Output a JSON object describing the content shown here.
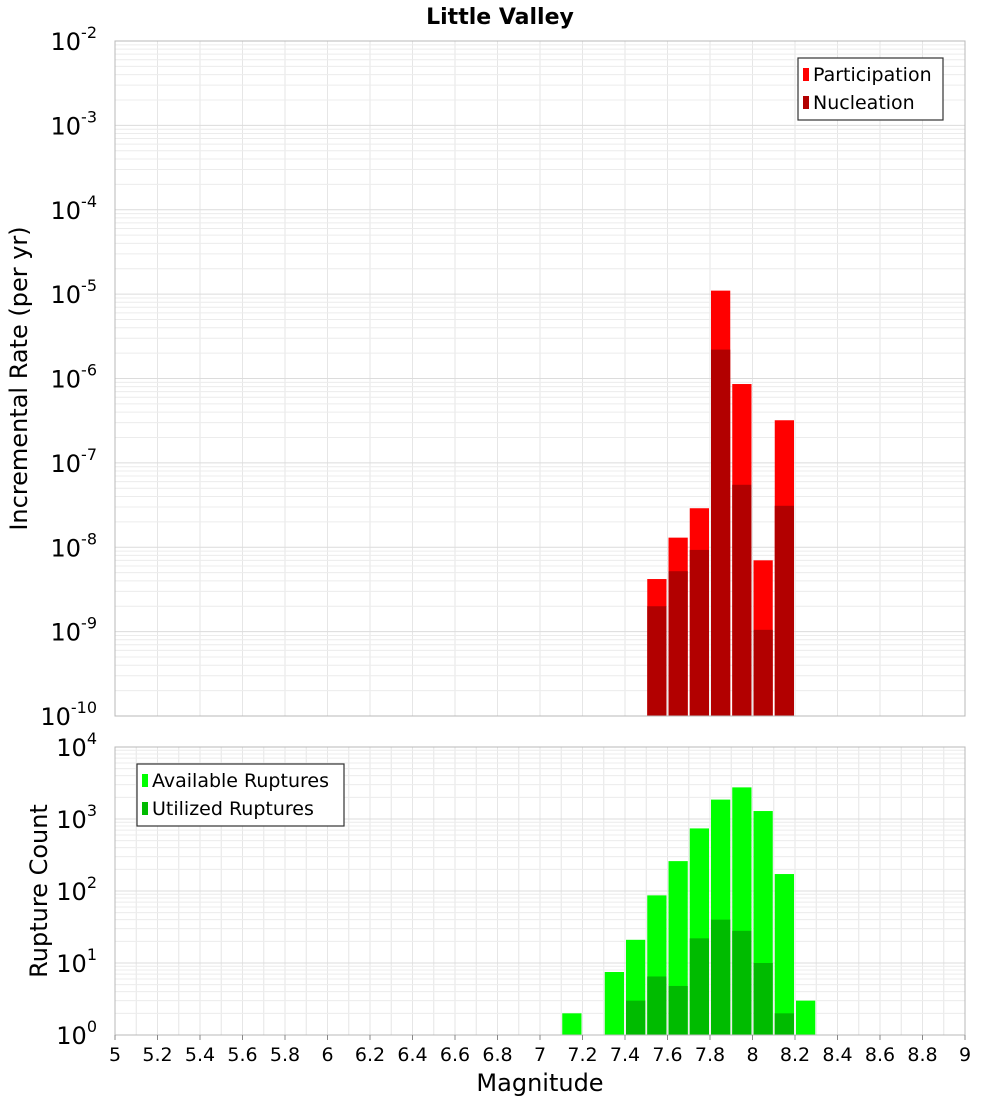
{
  "chart_data": [
    {
      "type": "bar",
      "title": "Little Valley",
      "ylabel": "Incremental Rate (per yr)",
      "xlabel": "",
      "y_scale": "log",
      "ylim_exponents": [
        -10,
        -2
      ],
      "xlim": [
        5,
        9
      ],
      "grid": true,
      "legend_placement": "top-right",
      "series": [
        {
          "name": "Participation",
          "color": "#ff0000",
          "bin_width": 0.1,
          "x": [
            7.55,
            7.65,
            7.75,
            7.85,
            7.95,
            8.05,
            8.15
          ],
          "values": [
            4.2e-09,
            1.3e-08,
            2.9e-08,
            1.1e-05,
            8.6e-07,
            7e-09,
            3.2e-07
          ]
        },
        {
          "name": "Nucleation",
          "color": "#b20000",
          "bin_width": 0.1,
          "x": [
            7.55,
            7.65,
            7.75,
            7.85,
            7.95,
            8.05,
            8.15
          ],
          "values": [
            2e-09,
            5.2e-09,
            9.3e-09,
            2.2e-06,
            5.5e-08,
            1.05e-09,
            3.1e-08
          ]
        }
      ]
    },
    {
      "type": "bar",
      "title": "",
      "ylabel": "Rupture Count",
      "xlabel": "Magnitude",
      "y_scale": "log",
      "ylim_exponents": [
        0,
        4
      ],
      "xlim": [
        5,
        9
      ],
      "grid": true,
      "legend_placement": "top-left",
      "x_ticks": [
        "5",
        "5.2",
        "5.4",
        "5.6",
        "5.8",
        "6",
        "6.2",
        "6.4",
        "6.6",
        "6.8",
        "7",
        "7.2",
        "7.4",
        "7.6",
        "7.8",
        "8",
        "8.2",
        "8.4",
        "8.6",
        "8.8",
        "9"
      ],
      "series": [
        {
          "name": "Available Ruptures",
          "color": "#00ff00",
          "bin_width": 0.1,
          "x": [
            7.15,
            7.25,
            7.35,
            7.45,
            7.55,
            7.65,
            7.75,
            7.85,
            7.95,
            8.05,
            8.15,
            8.25
          ],
          "values": [
            2,
            1,
            7.5,
            21,
            87,
            260,
            740,
            1860,
            2750,
            1290,
            172,
            3
          ]
        },
        {
          "name": "Utilized Ruptures",
          "color": "#00bb00",
          "bin_width": 0.1,
          "x": [
            7.35,
            7.45,
            7.55,
            7.65,
            7.75,
            7.85,
            7.95,
            8.05,
            8.15
          ],
          "values": [
            1,
            3,
            6.5,
            4.8,
            22,
            40,
            28,
            10,
            2
          ]
        }
      ]
    }
  ]
}
